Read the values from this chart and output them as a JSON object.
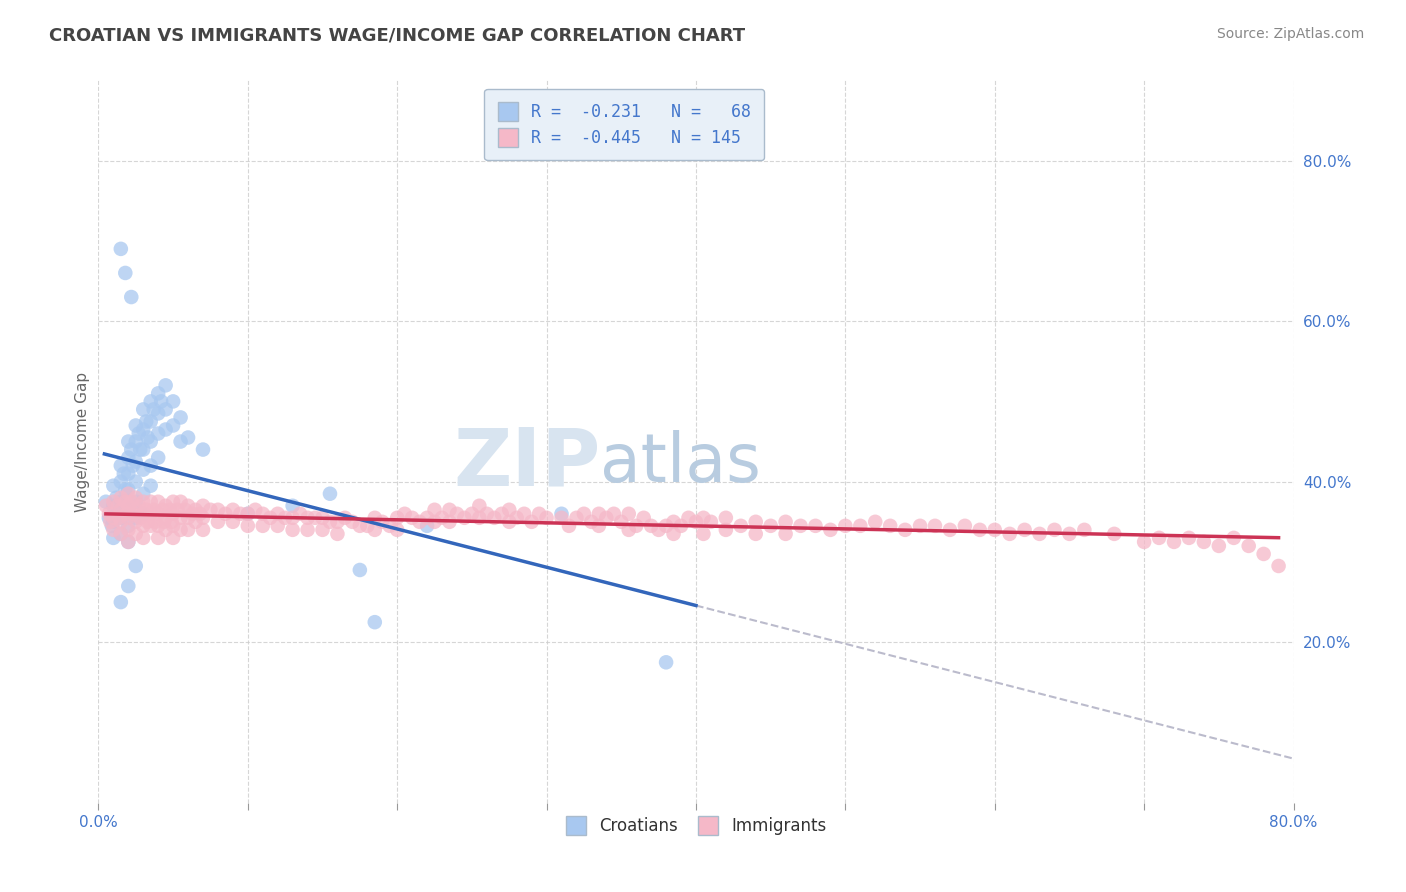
{
  "title": "CROATIAN VS IMMIGRANTS WAGE/INCOME GAP CORRELATION CHART",
  "source_text": "Source: ZipAtlas.com",
  "ylabel": "Wage/Income Gap",
  "x_min": 0.0,
  "x_max": 0.8,
  "y_min": 0.0,
  "y_max": 0.9,
  "x_ticks": [
    0.0,
    0.1,
    0.2,
    0.3,
    0.4,
    0.5,
    0.6,
    0.7,
    0.8
  ],
  "x_tick_labels": [
    "0.0%",
    "",
    "",
    "",
    "",
    "",
    "",
    "",
    "80.0%"
  ],
  "y_ticks": [
    0.2,
    0.4,
    0.6,
    0.8
  ],
  "y_tick_labels": [
    "20.0%",
    "40.0%",
    "60.0%",
    "80.0%"
  ],
  "legend_line1": "R =  -0.231   N =   68",
  "legend_line2": "R =  -0.445   N = 145",
  "legend_labels": [
    "Croatians",
    "Immigrants"
  ],
  "croatian_color": "#a8c8f0",
  "immigrant_color": "#f5b8c8",
  "trend_croatian_color": "#3366bb",
  "trend_immigrant_color": "#cc3355",
  "trend_dashed_color": "#bbbbcc",
  "watermark_zip": "ZIP",
  "watermark_atlas": "atlas",
  "watermark_color_zip": "#d8e4f0",
  "watermark_color_atlas": "#b8cce0",
  "background_color": "#ffffff",
  "grid_color": "#cccccc",
  "tick_label_color": "#4477cc",
  "title_color": "#444444",
  "legend_box_color": "#e8f0f8",
  "legend_border_color": "#aabbcc",
  "croatian_points": [
    [
      0.005,
      0.375
    ],
    [
      0.007,
      0.355
    ],
    [
      0.009,
      0.345
    ],
    [
      0.01,
      0.395
    ],
    [
      0.01,
      0.37
    ],
    [
      0.01,
      0.35
    ],
    [
      0.01,
      0.33
    ],
    [
      0.012,
      0.38
    ],
    [
      0.013,
      0.36
    ],
    [
      0.015,
      0.42
    ],
    [
      0.015,
      0.4
    ],
    [
      0.015,
      0.375
    ],
    [
      0.015,
      0.355
    ],
    [
      0.015,
      0.335
    ],
    [
      0.017,
      0.41
    ],
    [
      0.018,
      0.39
    ],
    [
      0.02,
      0.45
    ],
    [
      0.02,
      0.43
    ],
    [
      0.02,
      0.41
    ],
    [
      0.02,
      0.39
    ],
    [
      0.02,
      0.365
    ],
    [
      0.02,
      0.345
    ],
    [
      0.02,
      0.325
    ],
    [
      0.022,
      0.44
    ],
    [
      0.023,
      0.42
    ],
    [
      0.025,
      0.47
    ],
    [
      0.025,
      0.45
    ],
    [
      0.025,
      0.425
    ],
    [
      0.025,
      0.4
    ],
    [
      0.025,
      0.375
    ],
    [
      0.025,
      0.355
    ],
    [
      0.027,
      0.46
    ],
    [
      0.028,
      0.44
    ],
    [
      0.03,
      0.49
    ],
    [
      0.03,
      0.465
    ],
    [
      0.03,
      0.44
    ],
    [
      0.03,
      0.415
    ],
    [
      0.03,
      0.385
    ],
    [
      0.03,
      0.36
    ],
    [
      0.032,
      0.475
    ],
    [
      0.033,
      0.455
    ],
    [
      0.035,
      0.5
    ],
    [
      0.035,
      0.475
    ],
    [
      0.035,
      0.45
    ],
    [
      0.035,
      0.42
    ],
    [
      0.035,
      0.395
    ],
    [
      0.037,
      0.49
    ],
    [
      0.04,
      0.51
    ],
    [
      0.04,
      0.485
    ],
    [
      0.04,
      0.46
    ],
    [
      0.04,
      0.43
    ],
    [
      0.042,
      0.5
    ],
    [
      0.045,
      0.52
    ],
    [
      0.045,
      0.49
    ],
    [
      0.045,
      0.465
    ],
    [
      0.05,
      0.5
    ],
    [
      0.05,
      0.47
    ],
    [
      0.055,
      0.48
    ],
    [
      0.055,
      0.45
    ],
    [
      0.06,
      0.455
    ],
    [
      0.07,
      0.44
    ],
    [
      0.015,
      0.69
    ],
    [
      0.018,
      0.66
    ],
    [
      0.022,
      0.63
    ],
    [
      0.015,
      0.25
    ],
    [
      0.02,
      0.27
    ],
    [
      0.025,
      0.295
    ],
    [
      0.1,
      0.36
    ],
    [
      0.13,
      0.37
    ],
    [
      0.155,
      0.385
    ],
    [
      0.175,
      0.29
    ],
    [
      0.185,
      0.225
    ],
    [
      0.22,
      0.345
    ],
    [
      0.31,
      0.36
    ],
    [
      0.38,
      0.175
    ]
  ],
  "immigrant_points": [
    [
      0.005,
      0.37
    ],
    [
      0.007,
      0.36
    ],
    [
      0.008,
      0.35
    ],
    [
      0.01,
      0.375
    ],
    [
      0.01,
      0.355
    ],
    [
      0.01,
      0.34
    ],
    [
      0.013,
      0.37
    ],
    [
      0.014,
      0.355
    ],
    [
      0.015,
      0.38
    ],
    [
      0.015,
      0.365
    ],
    [
      0.015,
      0.35
    ],
    [
      0.015,
      0.335
    ],
    [
      0.018,
      0.375
    ],
    [
      0.019,
      0.36
    ],
    [
      0.02,
      0.385
    ],
    [
      0.02,
      0.37
    ],
    [
      0.02,
      0.355
    ],
    [
      0.02,
      0.34
    ],
    [
      0.02,
      0.325
    ],
    [
      0.022,
      0.375
    ],
    [
      0.023,
      0.36
    ],
    [
      0.025,
      0.38
    ],
    [
      0.025,
      0.365
    ],
    [
      0.025,
      0.35
    ],
    [
      0.025,
      0.335
    ],
    [
      0.027,
      0.37
    ],
    [
      0.028,
      0.355
    ],
    [
      0.03,
      0.375
    ],
    [
      0.03,
      0.36
    ],
    [
      0.03,
      0.345
    ],
    [
      0.03,
      0.33
    ],
    [
      0.032,
      0.365
    ],
    [
      0.033,
      0.35
    ],
    [
      0.035,
      0.375
    ],
    [
      0.035,
      0.36
    ],
    [
      0.035,
      0.345
    ],
    [
      0.037,
      0.365
    ],
    [
      0.038,
      0.35
    ],
    [
      0.04,
      0.375
    ],
    [
      0.04,
      0.36
    ],
    [
      0.04,
      0.345
    ],
    [
      0.04,
      0.33
    ],
    [
      0.043,
      0.365
    ],
    [
      0.044,
      0.35
    ],
    [
      0.045,
      0.37
    ],
    [
      0.045,
      0.355
    ],
    [
      0.045,
      0.34
    ],
    [
      0.048,
      0.365
    ],
    [
      0.049,
      0.35
    ],
    [
      0.05,
      0.375
    ],
    [
      0.05,
      0.36
    ],
    [
      0.05,
      0.345
    ],
    [
      0.05,
      0.33
    ],
    [
      0.053,
      0.365
    ],
    [
      0.055,
      0.375
    ],
    [
      0.055,
      0.355
    ],
    [
      0.055,
      0.34
    ],
    [
      0.058,
      0.365
    ],
    [
      0.06,
      0.37
    ],
    [
      0.06,
      0.355
    ],
    [
      0.06,
      0.34
    ],
    [
      0.063,
      0.36
    ],
    [
      0.065,
      0.365
    ],
    [
      0.065,
      0.35
    ],
    [
      0.068,
      0.36
    ],
    [
      0.07,
      0.37
    ],
    [
      0.07,
      0.355
    ],
    [
      0.07,
      0.34
    ],
    [
      0.075,
      0.365
    ],
    [
      0.08,
      0.365
    ],
    [
      0.08,
      0.35
    ],
    [
      0.085,
      0.36
    ],
    [
      0.09,
      0.365
    ],
    [
      0.09,
      0.35
    ],
    [
      0.095,
      0.36
    ],
    [
      0.1,
      0.36
    ],
    [
      0.1,
      0.345
    ],
    [
      0.105,
      0.365
    ],
    [
      0.11,
      0.36
    ],
    [
      0.11,
      0.345
    ],
    [
      0.115,
      0.355
    ],
    [
      0.12,
      0.36
    ],
    [
      0.12,
      0.345
    ],
    [
      0.125,
      0.355
    ],
    [
      0.13,
      0.355
    ],
    [
      0.13,
      0.34
    ],
    [
      0.135,
      0.36
    ],
    [
      0.14,
      0.355
    ],
    [
      0.14,
      0.34
    ],
    [
      0.145,
      0.355
    ],
    [
      0.15,
      0.355
    ],
    [
      0.15,
      0.34
    ],
    [
      0.155,
      0.35
    ],
    [
      0.16,
      0.35
    ],
    [
      0.16,
      0.335
    ],
    [
      0.165,
      0.355
    ],
    [
      0.17,
      0.35
    ],
    [
      0.175,
      0.345
    ],
    [
      0.18,
      0.345
    ],
    [
      0.185,
      0.355
    ],
    [
      0.185,
      0.34
    ],
    [
      0.19,
      0.35
    ],
    [
      0.195,
      0.345
    ],
    [
      0.2,
      0.355
    ],
    [
      0.2,
      0.34
    ],
    [
      0.205,
      0.36
    ],
    [
      0.21,
      0.355
    ],
    [
      0.215,
      0.35
    ],
    [
      0.22,
      0.355
    ],
    [
      0.225,
      0.365
    ],
    [
      0.225,
      0.35
    ],
    [
      0.23,
      0.355
    ],
    [
      0.235,
      0.365
    ],
    [
      0.235,
      0.35
    ],
    [
      0.24,
      0.36
    ],
    [
      0.245,
      0.355
    ],
    [
      0.25,
      0.36
    ],
    [
      0.255,
      0.37
    ],
    [
      0.255,
      0.355
    ],
    [
      0.26,
      0.36
    ],
    [
      0.265,
      0.355
    ],
    [
      0.27,
      0.36
    ],
    [
      0.275,
      0.365
    ],
    [
      0.275,
      0.35
    ],
    [
      0.28,
      0.355
    ],
    [
      0.285,
      0.36
    ],
    [
      0.29,
      0.35
    ],
    [
      0.295,
      0.36
    ],
    [
      0.3,
      0.355
    ],
    [
      0.31,
      0.355
    ],
    [
      0.315,
      0.345
    ],
    [
      0.32,
      0.355
    ],
    [
      0.325,
      0.36
    ],
    [
      0.33,
      0.35
    ],
    [
      0.335,
      0.36
    ],
    [
      0.335,
      0.345
    ],
    [
      0.34,
      0.355
    ],
    [
      0.345,
      0.36
    ],
    [
      0.35,
      0.35
    ],
    [
      0.355,
      0.36
    ],
    [
      0.355,
      0.34
    ],
    [
      0.36,
      0.345
    ],
    [
      0.365,
      0.355
    ],
    [
      0.37,
      0.345
    ],
    [
      0.375,
      0.34
    ],
    [
      0.38,
      0.345
    ],
    [
      0.385,
      0.35
    ],
    [
      0.385,
      0.335
    ],
    [
      0.39,
      0.345
    ],
    [
      0.395,
      0.355
    ],
    [
      0.4,
      0.35
    ],
    [
      0.405,
      0.355
    ],
    [
      0.405,
      0.335
    ],
    [
      0.41,
      0.35
    ],
    [
      0.42,
      0.355
    ],
    [
      0.42,
      0.34
    ],
    [
      0.43,
      0.345
    ],
    [
      0.44,
      0.35
    ],
    [
      0.44,
      0.335
    ],
    [
      0.45,
      0.345
    ],
    [
      0.46,
      0.35
    ],
    [
      0.46,
      0.335
    ],
    [
      0.47,
      0.345
    ],
    [
      0.48,
      0.345
    ],
    [
      0.49,
      0.34
    ],
    [
      0.5,
      0.345
    ],
    [
      0.51,
      0.345
    ],
    [
      0.52,
      0.35
    ],
    [
      0.53,
      0.345
    ],
    [
      0.54,
      0.34
    ],
    [
      0.55,
      0.345
    ],
    [
      0.56,
      0.345
    ],
    [
      0.57,
      0.34
    ],
    [
      0.58,
      0.345
    ],
    [
      0.59,
      0.34
    ],
    [
      0.6,
      0.34
    ],
    [
      0.61,
      0.335
    ],
    [
      0.62,
      0.34
    ],
    [
      0.63,
      0.335
    ],
    [
      0.64,
      0.34
    ],
    [
      0.65,
      0.335
    ],
    [
      0.66,
      0.34
    ],
    [
      0.68,
      0.335
    ],
    [
      0.7,
      0.325
    ],
    [
      0.71,
      0.33
    ],
    [
      0.72,
      0.325
    ],
    [
      0.73,
      0.33
    ],
    [
      0.74,
      0.325
    ],
    [
      0.75,
      0.32
    ],
    [
      0.76,
      0.33
    ],
    [
      0.77,
      0.32
    ],
    [
      0.78,
      0.31
    ],
    [
      0.79,
      0.295
    ]
  ]
}
